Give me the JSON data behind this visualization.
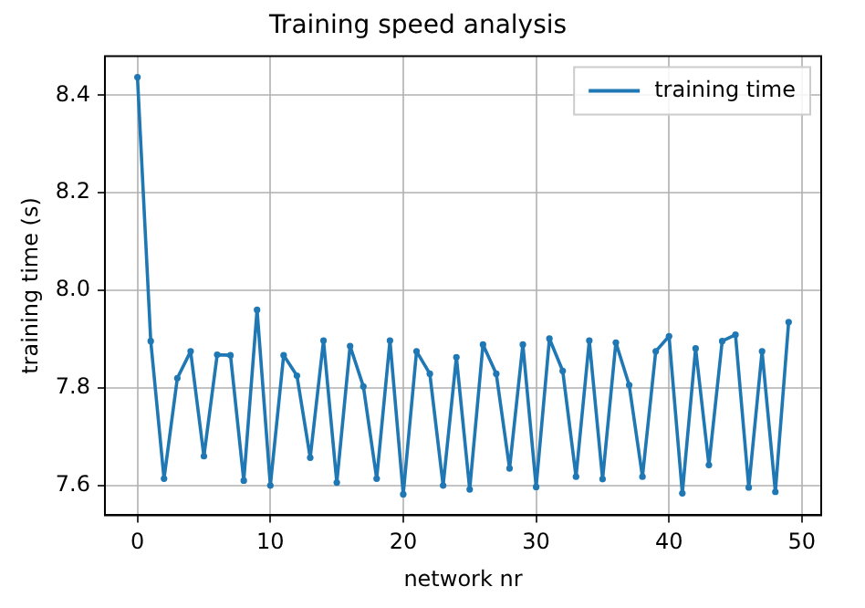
{
  "chart_data": {
    "type": "line",
    "title": "Training speed analysis",
    "xlabel": "network nr",
    "ylabel": "training time (s)",
    "x": [
      0,
      1,
      2,
      3,
      4,
      5,
      6,
      7,
      8,
      9,
      10,
      11,
      12,
      13,
      14,
      15,
      16,
      17,
      18,
      19,
      20,
      21,
      22,
      23,
      24,
      25,
      26,
      27,
      28,
      29,
      30,
      31,
      32,
      33,
      34,
      35,
      36,
      37,
      38,
      39,
      40,
      41,
      42,
      43,
      44,
      45,
      46,
      47,
      48,
      49
    ],
    "series": [
      {
        "name": "training time",
        "color": "#1f77b4",
        "values": [
          8.437,
          7.896,
          7.614,
          7.82,
          7.875,
          7.66,
          7.868,
          7.867,
          7.61,
          7.96,
          7.6,
          7.867,
          7.825,
          7.657,
          7.897,
          7.606,
          7.886,
          7.803,
          7.614,
          7.897,
          7.582,
          7.875,
          7.829,
          7.6,
          7.863,
          7.592,
          7.889,
          7.829,
          7.635,
          7.889,
          7.597,
          7.901,
          7.835,
          7.618,
          7.897,
          7.613,
          7.893,
          7.806,
          7.618,
          7.875,
          7.906,
          7.584,
          7.881,
          7.642,
          7.896,
          7.909,
          7.596,
          7.875,
          7.587,
          7.935
        ]
      }
    ],
    "xlim": [
      -2.45,
      51.45
    ],
    "xticks": [
      0,
      10,
      20,
      30,
      40,
      50
    ],
    "ylim": [
      7.539,
      8.48
    ],
    "yticks": [
      {
        "value": 7.6,
        "label": "7.6"
      },
      {
        "value": 7.8,
        "label": "7.8"
      },
      {
        "value": 8.0,
        "label": "8.0"
      },
      {
        "value": 8.2,
        "label": "8.2"
      },
      {
        "value": 8.4,
        "label": "8.4"
      }
    ],
    "grid": true,
    "legend": "top right",
    "marker": "circle",
    "line_style": "solid"
  }
}
